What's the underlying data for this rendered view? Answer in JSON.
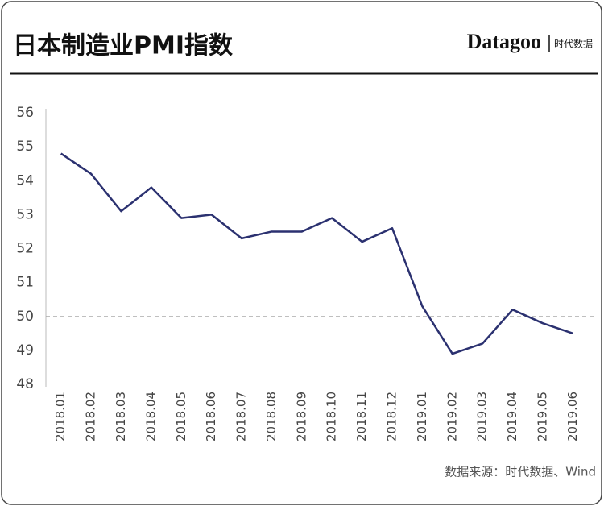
{
  "brand": {
    "name": "Datagoo",
    "sub": "时代数据"
  },
  "chart_data": {
    "type": "line",
    "title": "日本制造业PMI指数",
    "source": "数据来源：时代数据、Wind",
    "categories": [
      "2018.01",
      "2018.02",
      "2018.03",
      "2018.04",
      "2018.05",
      "2018.06",
      "2018.07",
      "2018.08",
      "2018.09",
      "2018.10",
      "2018.11",
      "2018.12",
      "2019.01",
      "2019.02",
      "2019.03",
      "2019.04",
      "2019.05",
      "2019.06"
    ],
    "series": [
      {
        "name": "日本制造业PMI",
        "color": "#2b3170",
        "values": [
          54.8,
          54.2,
          53.1,
          53.8,
          52.9,
          53.0,
          52.3,
          52.5,
          52.5,
          52.9,
          52.2,
          52.6,
          50.3,
          48.9,
          49.2,
          50.2,
          49.8,
          49.5
        ]
      }
    ],
    "ylim": [
      48,
      56
    ],
    "yticks": [
      48,
      49,
      50,
      51,
      52,
      53,
      54,
      55,
      56
    ],
    "reference_line": 50,
    "grid": false
  }
}
